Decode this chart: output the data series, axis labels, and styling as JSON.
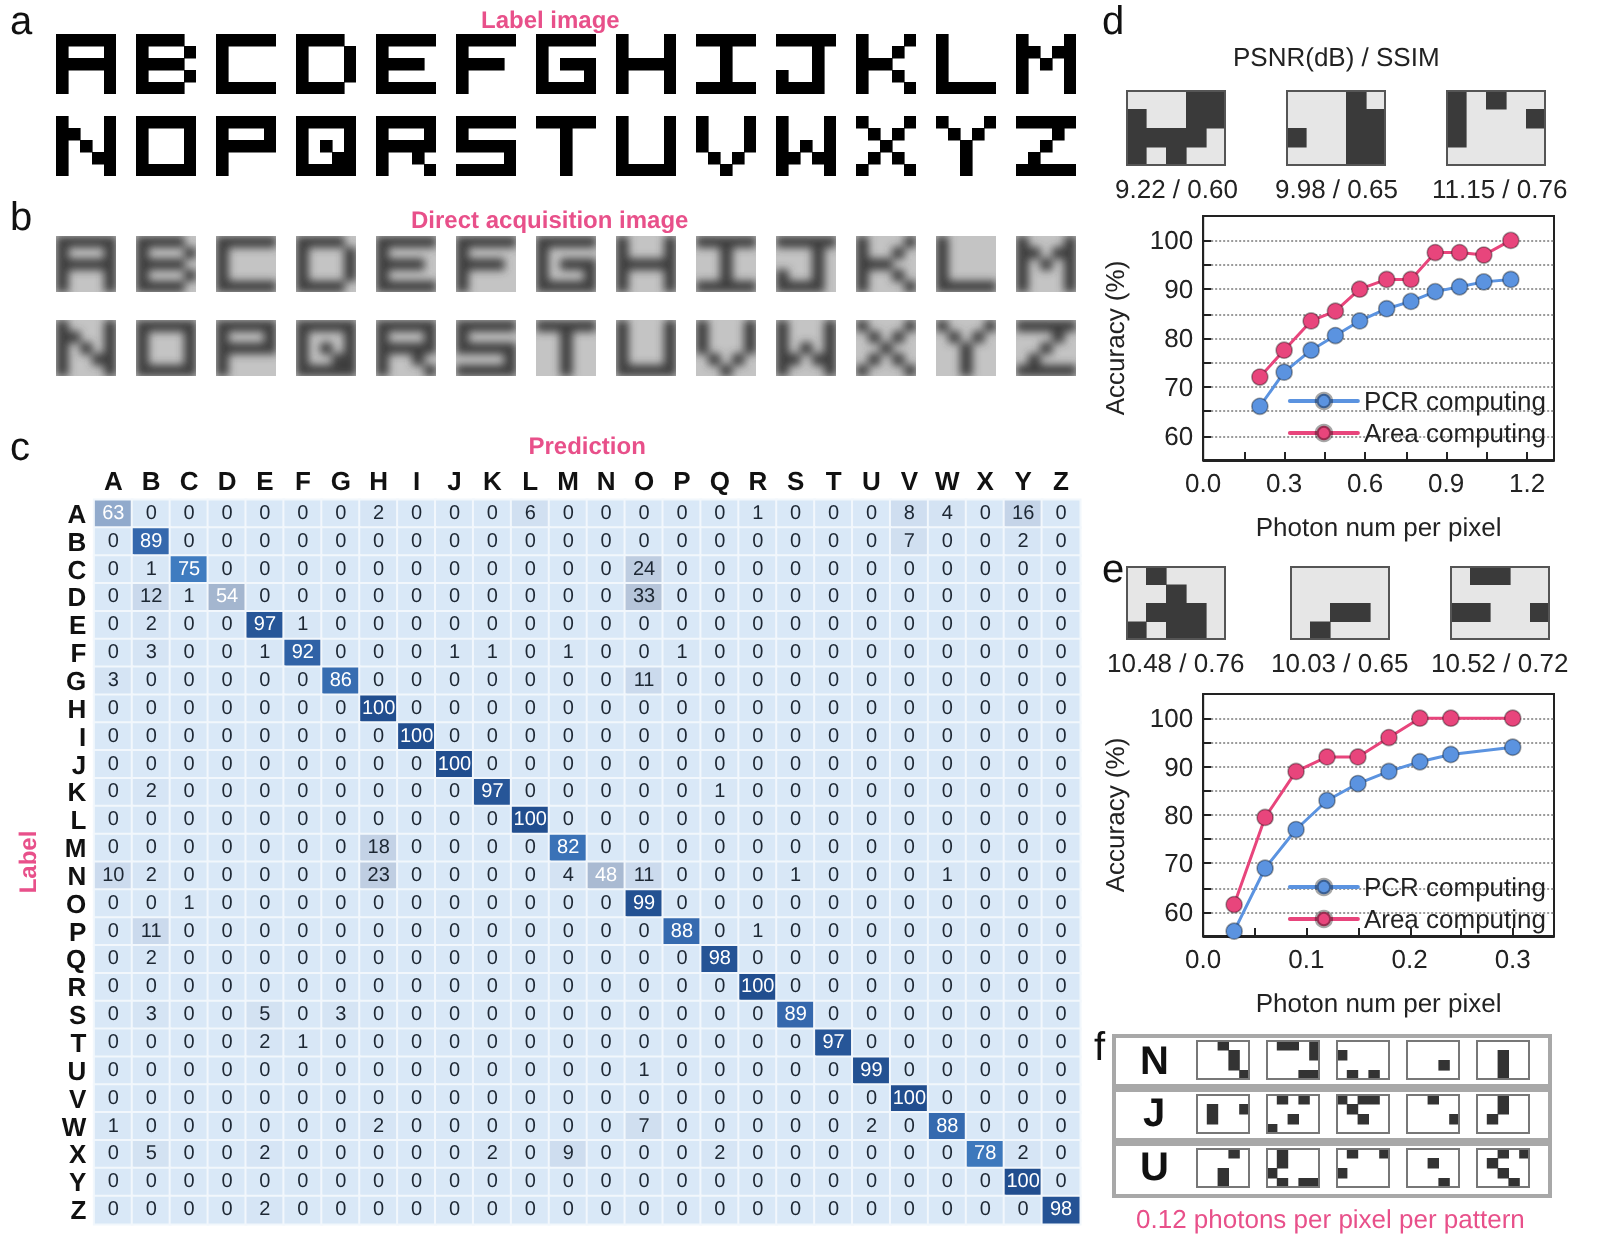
{
  "chart_data": [
    {
      "type": "other",
      "annotations": [
        "a",
        "Label image",
        "b",
        "Direct acquisition image"
      ]
    },
    {
      "type": "heatmap",
      "xlabel": "Prediction",
      "ylabel": "Label",
      "annotations": [
        "c"
      ],
      "data_labels": true,
      "categories": [
        "A",
        "B",
        "C",
        "D",
        "E",
        "F",
        "G",
        "H",
        "I",
        "J",
        "K",
        "L",
        "M",
        "N",
        "O",
        "P",
        "Q",
        "R",
        "S",
        "T",
        "U",
        "V",
        "W",
        "X",
        "Y",
        "Z"
      ],
      "y_categories": [
        "A",
        "B",
        "C",
        "D",
        "E",
        "F",
        "G",
        "H",
        "I",
        "J",
        "K",
        "L",
        "M",
        "N",
        "O",
        "P",
        "Q",
        "R",
        "S",
        "T",
        "U",
        "V",
        "W",
        "X",
        "Y",
        "Z"
      ],
      "cells": [
        [
          63,
          0,
          0,
          0,
          0,
          0,
          0,
          2,
          0,
          0,
          0,
          6,
          0,
          0,
          0,
          0,
          0,
          1,
          0,
          0,
          0,
          8,
          4,
          0,
          16,
          0
        ],
        [
          0,
          89,
          0,
          0,
          0,
          0,
          0,
          0,
          0,
          0,
          0,
          0,
          0,
          0,
          0,
          0,
          0,
          0,
          0,
          0,
          0,
          7,
          0,
          0,
          2,
          0
        ],
        [
          0,
          1,
          75,
          0,
          0,
          0,
          0,
          0,
          0,
          0,
          0,
          0,
          0,
          0,
          24,
          0,
          0,
          0,
          0,
          0,
          0,
          0,
          0,
          0,
          0,
          0
        ],
        [
          0,
          12,
          1,
          54,
          0,
          0,
          0,
          0,
          0,
          0,
          0,
          0,
          0,
          0,
          33,
          0,
          0,
          0,
          0,
          0,
          0,
          0,
          0,
          0,
          0,
          0
        ],
        [
          0,
          2,
          0,
          0,
          97,
          1,
          0,
          0,
          0,
          0,
          0,
          0,
          0,
          0,
          0,
          0,
          0,
          0,
          0,
          0,
          0,
          0,
          0,
          0,
          0,
          0
        ],
        [
          0,
          3,
          0,
          0,
          1,
          92,
          0,
          0,
          0,
          1,
          1,
          0,
          1,
          0,
          0,
          1,
          0,
          0,
          0,
          0,
          0,
          0,
          0,
          0,
          0,
          0
        ],
        [
          3,
          0,
          0,
          0,
          0,
          0,
          86,
          0,
          0,
          0,
          0,
          0,
          0,
          0,
          11,
          0,
          0,
          0,
          0,
          0,
          0,
          0,
          0,
          0,
          0,
          0
        ],
        [
          0,
          0,
          0,
          0,
          0,
          0,
          0,
          100,
          0,
          0,
          0,
          0,
          0,
          0,
          0,
          0,
          0,
          0,
          0,
          0,
          0,
          0,
          0,
          0,
          0,
          0
        ],
        [
          0,
          0,
          0,
          0,
          0,
          0,
          0,
          0,
          100,
          0,
          0,
          0,
          0,
          0,
          0,
          0,
          0,
          0,
          0,
          0,
          0,
          0,
          0,
          0,
          0,
          0
        ],
        [
          0,
          0,
          0,
          0,
          0,
          0,
          0,
          0,
          0,
          100,
          0,
          0,
          0,
          0,
          0,
          0,
          0,
          0,
          0,
          0,
          0,
          0,
          0,
          0,
          0,
          0
        ],
        [
          0,
          2,
          0,
          0,
          0,
          0,
          0,
          0,
          0,
          0,
          97,
          0,
          0,
          0,
          0,
          0,
          1,
          0,
          0,
          0,
          0,
          0,
          0,
          0,
          0,
          0
        ],
        [
          0,
          0,
          0,
          0,
          0,
          0,
          0,
          0,
          0,
          0,
          0,
          100,
          0,
          0,
          0,
          0,
          0,
          0,
          0,
          0,
          0,
          0,
          0,
          0,
          0,
          0
        ],
        [
          0,
          0,
          0,
          0,
          0,
          0,
          0,
          18,
          0,
          0,
          0,
          0,
          82,
          0,
          0,
          0,
          0,
          0,
          0,
          0,
          0,
          0,
          0,
          0,
          0,
          0
        ],
        [
          10,
          2,
          0,
          0,
          0,
          0,
          0,
          23,
          0,
          0,
          0,
          0,
          4,
          48,
          11,
          0,
          0,
          0,
          1,
          0,
          0,
          0,
          1,
          0,
          0,
          0
        ],
        [
          0,
          0,
          1,
          0,
          0,
          0,
          0,
          0,
          0,
          0,
          0,
          0,
          0,
          0,
          99,
          0,
          0,
          0,
          0,
          0,
          0,
          0,
          0,
          0,
          0,
          0
        ],
        [
          0,
          11,
          0,
          0,
          0,
          0,
          0,
          0,
          0,
          0,
          0,
          0,
          0,
          0,
          0,
          88,
          0,
          1,
          0,
          0,
          0,
          0,
          0,
          0,
          0,
          0
        ],
        [
          0,
          2,
          0,
          0,
          0,
          0,
          0,
          0,
          0,
          0,
          0,
          0,
          0,
          0,
          0,
          0,
          98,
          0,
          0,
          0,
          0,
          0,
          0,
          0,
          0,
          0
        ],
        [
          0,
          0,
          0,
          0,
          0,
          0,
          0,
          0,
          0,
          0,
          0,
          0,
          0,
          0,
          0,
          0,
          0,
          100,
          0,
          0,
          0,
          0,
          0,
          0,
          0,
          0
        ],
        [
          0,
          3,
          0,
          0,
          5,
          0,
          3,
          0,
          0,
          0,
          0,
          0,
          0,
          0,
          0,
          0,
          0,
          0,
          89,
          0,
          0,
          0,
          0,
          0,
          0,
          0
        ],
        [
          0,
          0,
          0,
          0,
          2,
          1,
          0,
          0,
          0,
          0,
          0,
          0,
          0,
          0,
          0,
          0,
          0,
          0,
          0,
          97,
          0,
          0,
          0,
          0,
          0,
          0
        ],
        [
          0,
          0,
          0,
          0,
          0,
          0,
          0,
          0,
          0,
          0,
          0,
          0,
          0,
          0,
          1,
          0,
          0,
          0,
          0,
          0,
          99,
          0,
          0,
          0,
          0,
          0
        ],
        [
          0,
          0,
          0,
          0,
          0,
          0,
          0,
          0,
          0,
          0,
          0,
          0,
          0,
          0,
          0,
          0,
          0,
          0,
          0,
          0,
          0,
          100,
          0,
          0,
          0,
          0
        ],
        [
          1,
          0,
          0,
          0,
          0,
          0,
          0,
          2,
          0,
          0,
          0,
          0,
          0,
          0,
          7,
          0,
          0,
          0,
          0,
          0,
          2,
          0,
          88,
          0,
          0,
          0
        ],
        [
          0,
          5,
          0,
          0,
          2,
          0,
          0,
          0,
          0,
          0,
          2,
          0,
          9,
          0,
          0,
          0,
          2,
          0,
          0,
          0,
          0,
          0,
          0,
          78,
          2,
          0
        ],
        [
          0,
          0,
          0,
          0,
          0,
          0,
          0,
          0,
          0,
          0,
          0,
          0,
          0,
          0,
          0,
          0,
          0,
          0,
          0,
          0,
          0,
          0,
          0,
          0,
          100,
          0
        ],
        [
          0,
          0,
          0,
          0,
          2,
          0,
          0,
          0,
          0,
          0,
          0,
          0,
          0,
          0,
          0,
          0,
          0,
          0,
          0,
          0,
          0,
          0,
          0,
          0,
          0,
          98
        ]
      ]
    },
    {
      "type": "line",
      "title": "PSNR(dB) / SSIM",
      "annotations": [
        "d",
        "9.22 / 0.60",
        "9.98 / 0.65",
        "11.15 / 0.76"
      ],
      "xlabel": "Photon num per pixel",
      "ylabel": "Accuracy (%)",
      "x": [
        0.21,
        0.3,
        0.4,
        0.49,
        0.58,
        0.68,
        0.77,
        0.86,
        0.95,
        1.04,
        1.14
      ],
      "series": [
        {
          "name": "PCR computing",
          "color": "#5b93e0",
          "values": [
            66,
            73,
            77.5,
            80.5,
            83.5,
            86,
            87.5,
            89.5,
            90.5,
            91.5,
            92
          ]
        },
        {
          "name": "Area computing",
          "color": "#e8457c",
          "values": [
            72,
            77.5,
            83.5,
            85.5,
            90,
            92,
            92,
            97.5,
            97.5,
            97,
            100
          ]
        }
      ],
      "xlim": [
        0,
        1.3
      ],
      "xticks": [
        {
          "value": 0,
          "label": "0.0"
        },
        {
          "value": 0.15,
          "label": null
        },
        0.3,
        {
          "value": 0.45,
          "label": null
        },
        0.6,
        {
          "value": 0.75,
          "label": null
        },
        0.9,
        {
          "value": 1.05,
          "label": null
        },
        1.2
      ],
      "ylim": [
        55,
        105
      ],
      "yticks": [
        60,
        {
          "value": 65,
          "label": null
        },
        70,
        {
          "value": 75,
          "label": null
        },
        80,
        {
          "value": 85,
          "label": null
        },
        90,
        {
          "value": 95,
          "label": null
        },
        100
      ],
      "grid": "y",
      "legend": "bottom right",
      "marker": "circle",
      "line_style": "solid"
    },
    {
      "type": "line",
      "annotations": [
        "e",
        "10.48 / 0.76",
        "10.03 / 0.65",
        "10.52 / 0.72"
      ],
      "xlabel": "Photon num per pixel",
      "ylabel": "Accuracy (%)",
      "x": [
        0.03,
        0.06,
        0.09,
        0.12,
        0.15,
        0.18,
        0.21,
        0.24,
        0.3
      ],
      "series": [
        {
          "name": "PCR computing",
          "color": "#5b93e0",
          "values": [
            56,
            69,
            77,
            83,
            86.5,
            89,
            91,
            92.5,
            94
          ]
        },
        {
          "name": "Area computing",
          "color": "#e8457c",
          "values": [
            61.5,
            79.5,
            89,
            92,
            92,
            96,
            100,
            100,
            100
          ]
        }
      ],
      "xlim": [
        0,
        0.34
      ],
      "xticks": [
        {
          "value": 0,
          "label": "0.0"
        },
        {
          "value": 0.05,
          "label": null
        },
        0.1,
        {
          "value": 0.15,
          "label": null
        },
        0.2,
        {
          "value": 0.25,
          "label": null
        },
        0.3
      ],
      "ylim": [
        55,
        105
      ],
      "yticks": [
        60,
        {
          "value": 65,
          "label": null
        },
        70,
        {
          "value": 75,
          "label": null
        },
        80,
        {
          "value": 85,
          "label": null
        },
        90,
        {
          "value": 95,
          "label": null
        },
        100
      ],
      "grid": "y",
      "legend": "bottom right",
      "marker": "circle",
      "line_style": "solid"
    },
    {
      "type": "other",
      "annotations": [
        "f",
        "N",
        "J",
        "U",
        "0.12 photons per pixel per pattern"
      ]
    }
  ]
}
